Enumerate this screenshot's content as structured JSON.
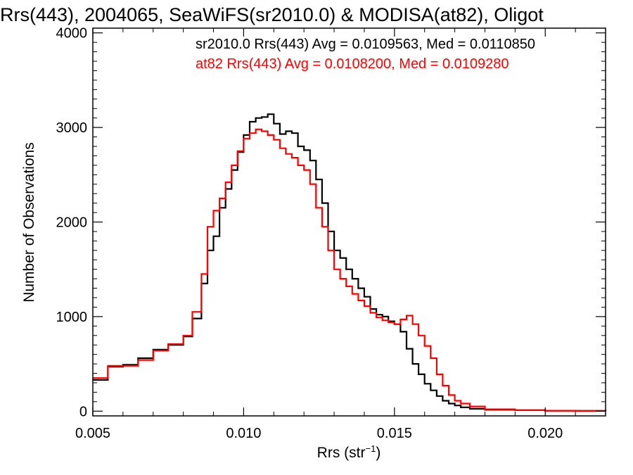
{
  "chart_data": {
    "type": "line",
    "title": "Rrs(443), 2004065, SeaWiFS(sr2010.0) & MODISA(at82), Oligot",
    "xlabel": "Rrs (str",
    "xlabel_sup": "−1",
    "xlabel_close": ")",
    "ylabel": "Number of Observations",
    "xlim": [
      0.005,
      0.022
    ],
    "ylim": [
      -50,
      4050
    ],
    "x_ticks": [
      0.005,
      0.01,
      0.015,
      0.02
    ],
    "x_tick_labels": [
      "0.005",
      "0.010",
      "0.015",
      "0.020"
    ],
    "y_ticks": [
      0,
      1000,
      2000,
      3000,
      4000
    ],
    "y_tick_labels": [
      "0",
      "1000",
      "2000",
      "3000",
      "4000"
    ],
    "grid": false,
    "legend": [
      {
        "text": "sr2010.0 Rrs(443) Avg = 0.0109563, Med = 0.0110850",
        "color": "#000000"
      },
      {
        "text": "at82 Rrs(443) Avg = 0.0108200, Med = 0.0109280",
        "color": "#ff0000"
      }
    ],
    "series": [
      {
        "name": "sr2010.0",
        "color": "#000000",
        "x": [
          0.005,
          0.0055,
          0.006,
          0.0065,
          0.007,
          0.0075,
          0.008,
          0.0083,
          0.0086,
          0.0088,
          0.009,
          0.0092,
          0.0094,
          0.0096,
          0.0098,
          0.01,
          0.0102,
          0.0104,
          0.0106,
          0.0108,
          0.011,
          0.0112,
          0.0114,
          0.0116,
          0.0118,
          0.012,
          0.0122,
          0.0124,
          0.0126,
          0.0128,
          0.013,
          0.0132,
          0.0134,
          0.0136,
          0.0138,
          0.014,
          0.0142,
          0.0144,
          0.0146,
          0.0148,
          0.015,
          0.0152,
          0.0154,
          0.0156,
          0.0158,
          0.016,
          0.0162,
          0.0164,
          0.0166,
          0.0168,
          0.017,
          0.0172,
          0.0175,
          0.018,
          0.019,
          0.02,
          0.021,
          0.022
        ],
        "values": [
          330,
          470,
          490,
          560,
          650,
          700,
          790,
          980,
          1350,
          1700,
          1850,
          2150,
          2350,
          2550,
          2740,
          2920,
          3060,
          3100,
          3110,
          3140,
          3040,
          2930,
          2960,
          2940,
          2800,
          2760,
          2650,
          2450,
          2200,
          1900,
          1700,
          1620,
          1500,
          1400,
          1300,
          1210,
          1080,
          1020,
          1000,
          950,
          920,
          840,
          660,
          500,
          390,
          290,
          220,
          160,
          110,
          80,
          60,
          40,
          25,
          15,
          10,
          5,
          3,
          2
        ]
      },
      {
        "name": "at82",
        "color": "#ff0000",
        "x": [
          0.005,
          0.0055,
          0.006,
          0.0065,
          0.007,
          0.0075,
          0.008,
          0.0083,
          0.0086,
          0.0088,
          0.009,
          0.0092,
          0.0094,
          0.0096,
          0.0098,
          0.01,
          0.0102,
          0.0104,
          0.0106,
          0.0108,
          0.011,
          0.0112,
          0.0114,
          0.0116,
          0.0118,
          0.012,
          0.0122,
          0.0124,
          0.0126,
          0.0128,
          0.013,
          0.0132,
          0.0134,
          0.0136,
          0.0138,
          0.014,
          0.0142,
          0.0144,
          0.0146,
          0.0148,
          0.015,
          0.0152,
          0.0154,
          0.0156,
          0.0158,
          0.016,
          0.0162,
          0.0164,
          0.0166,
          0.0168,
          0.017,
          0.0172,
          0.0175,
          0.018,
          0.019,
          0.02,
          0.021,
          0.022
        ],
        "values": [
          350,
          480,
          480,
          540,
          640,
          710,
          800,
          1050,
          1450,
          1950,
          2120,
          2250,
          2420,
          2600,
          2750,
          2880,
          2940,
          2980,
          2960,
          2920,
          2870,
          2780,
          2720,
          2680,
          2600,
          2550,
          2400,
          2150,
          1950,
          1700,
          1500,
          1400,
          1320,
          1240,
          1170,
          1110,
          1040,
          990,
          960,
          940,
          920,
          970,
          1010,
          920,
          800,
          690,
          560,
          390,
          270,
          170,
          110,
          80,
          50,
          20,
          10,
          5,
          3,
          2
        ]
      }
    ]
  }
}
